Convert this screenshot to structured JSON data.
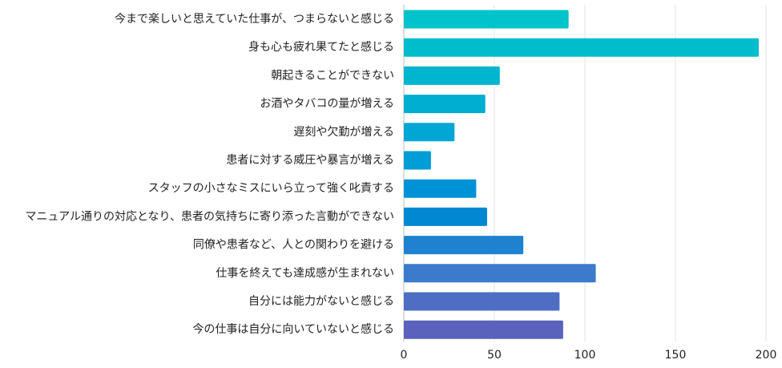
{
  "chart_data": {
    "type": "bar",
    "orientation": "horizontal",
    "categories": [
      "今まで楽しいと思えていた仕事が、つまらないと感じる",
      "身も心も疲れ果てたと感じる",
      "朝起きることができない",
      "お酒やタバコの量が増える",
      "遅刻や欠勤が増える",
      "患者に対する威圧や暴言が増える",
      "スタッフの小さなミスにいら立って強く叱責する",
      "マニュアル通りの対応となり、患者の気持ちに寄り添った言動ができない",
      "同僚や患者など、人との関わりを避ける",
      "仕事を終えても達成感が生まれない",
      "自分には能力がないと感じる",
      "今の仕事は自分に向いていないと感じる"
    ],
    "values": [
      91,
      196,
      53,
      45,
      28,
      15,
      40,
      46,
      66,
      106,
      86,
      88
    ],
    "bar_colors": [
      "#00c3cc",
      "#00bdcc",
      "#00b5cf",
      "#00aed2",
      "#00a6d4",
      "#009dd6",
      "#0092d6",
      "#0088d2",
      "#1f82d0",
      "#3c7bcb",
      "#4e6ec4",
      "#5a62bd"
    ],
    "xlim": [
      0,
      200
    ],
    "x_ticks": [
      0,
      50,
      100,
      150,
      200
    ],
    "grid": true,
    "title": "",
    "xlabel": "",
    "ylabel": ""
  }
}
